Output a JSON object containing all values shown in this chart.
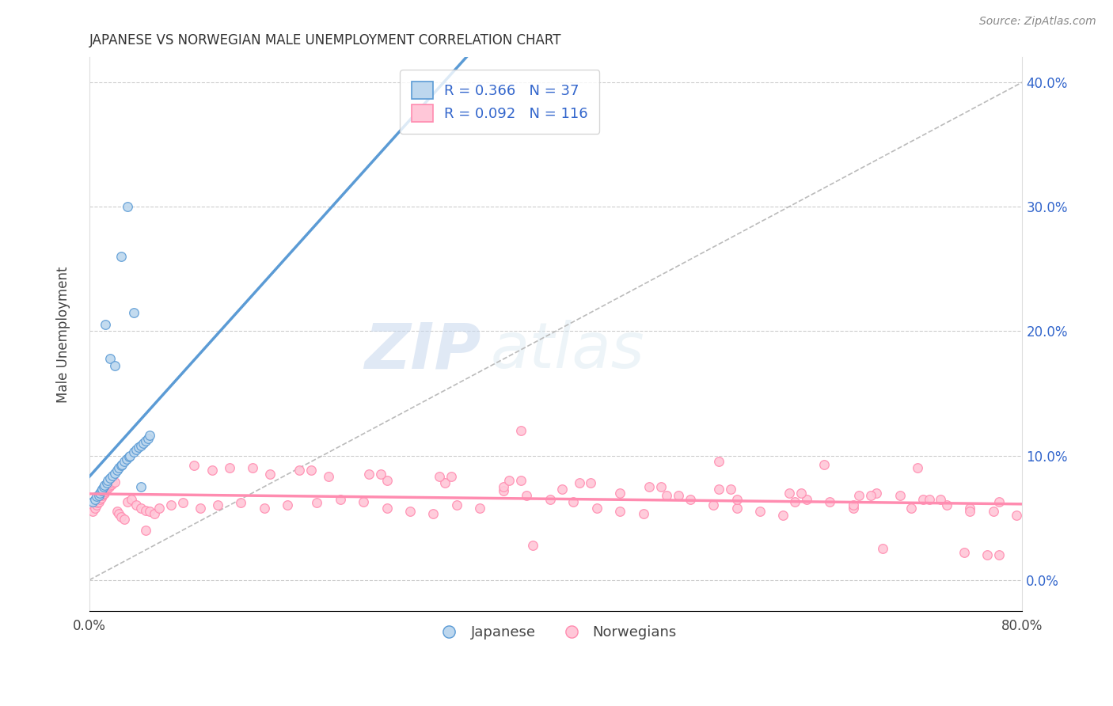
{
  "title": "JAPANESE VS NORWEGIAN MALE UNEMPLOYMENT CORRELATION CHART",
  "source": "Source: ZipAtlas.com",
  "ylabel": "Male Unemployment",
  "xlabel": "",
  "xlim": [
    0.0,
    0.8
  ],
  "ylim": [
    -0.025,
    0.42
  ],
  "xticks": [
    0.0,
    0.8
  ],
  "xticklabels": [
    "0.0%",
    "80.0%"
  ],
  "yticks_right": [
    0.0,
    0.1,
    0.2,
    0.3,
    0.4
  ],
  "yticklabels_right": [
    "0.0%",
    "10.0%",
    "20.0%",
    "30.0%",
    "40.0%"
  ],
  "blue_color": "#5b9bd5",
  "blue_fill": "#bdd7ee",
  "pink_color": "#ff8cb0",
  "pink_fill": "#ffc7d8",
  "blue_R": 0.366,
  "blue_N": 37,
  "pink_R": 0.092,
  "pink_N": 116,
  "watermark_zip": "ZIP",
  "watermark_atlas": "atlas",
  "legend_color": "#3366cc",
  "grid_color": "#cccccc",
  "diag_color": "#bbbbbb",
  "jp_x": [
    0.003,
    0.005,
    0.006,
    0.008,
    0.009,
    0.01,
    0.011,
    0.012,
    0.013,
    0.015,
    0.016,
    0.018,
    0.02,
    0.022,
    0.024,
    0.025,
    0.027,
    0.028,
    0.03,
    0.032,
    0.034,
    0.035,
    0.038,
    0.04,
    0.042,
    0.044,
    0.046,
    0.048,
    0.05,
    0.052,
    0.014,
    0.018,
    0.022,
    0.027,
    0.033,
    0.038,
    0.044
  ],
  "jp_y": [
    0.063,
    0.065,
    0.067,
    0.068,
    0.07,
    0.072,
    0.073,
    0.075,
    0.076,
    0.078,
    0.08,
    0.082,
    0.084,
    0.086,
    0.088,
    0.09,
    0.092,
    0.093,
    0.095,
    0.097,
    0.099,
    0.1,
    0.103,
    0.105,
    0.107,
    0.108,
    0.11,
    0.112,
    0.114,
    0.116,
    0.205,
    0.178,
    0.172,
    0.26,
    0.3,
    0.215,
    0.075
  ],
  "no_x": [
    0.003,
    0.005,
    0.006,
    0.007,
    0.008,
    0.009,
    0.01,
    0.011,
    0.012,
    0.013,
    0.014,
    0.015,
    0.016,
    0.017,
    0.018,
    0.019,
    0.02,
    0.022,
    0.024,
    0.025,
    0.027,
    0.03,
    0.033,
    0.036,
    0.04,
    0.044,
    0.048,
    0.052,
    0.056,
    0.06,
    0.07,
    0.08,
    0.095,
    0.11,
    0.13,
    0.15,
    0.17,
    0.195,
    0.215,
    0.235,
    0.255,
    0.275,
    0.295,
    0.315,
    0.335,
    0.355,
    0.375,
    0.395,
    0.415,
    0.435,
    0.455,
    0.475,
    0.495,
    0.515,
    0.535,
    0.555,
    0.575,
    0.595,
    0.615,
    0.635,
    0.655,
    0.675,
    0.695,
    0.715,
    0.735,
    0.755,
    0.775,
    0.795,
    0.105,
    0.155,
    0.205,
    0.255,
    0.305,
    0.355,
    0.405,
    0.455,
    0.505,
    0.555,
    0.605,
    0.655,
    0.705,
    0.755,
    0.12,
    0.18,
    0.24,
    0.3,
    0.36,
    0.42,
    0.48,
    0.54,
    0.6,
    0.66,
    0.72,
    0.78,
    0.09,
    0.14,
    0.19,
    0.25,
    0.31,
    0.37,
    0.43,
    0.49,
    0.55,
    0.61,
    0.67,
    0.73,
    0.37,
    0.54,
    0.63,
    0.71,
    0.77,
    0.048,
    0.38,
    0.68,
    0.75,
    0.78
  ],
  "no_y": [
    0.055,
    0.058,
    0.06,
    0.062,
    0.063,
    0.065,
    0.066,
    0.068,
    0.069,
    0.07,
    0.071,
    0.073,
    0.074,
    0.075,
    0.076,
    0.077,
    0.078,
    0.079,
    0.055,
    0.053,
    0.051,
    0.049,
    0.063,
    0.065,
    0.06,
    0.058,
    0.056,
    0.055,
    0.053,
    0.058,
    0.06,
    0.062,
    0.058,
    0.06,
    0.062,
    0.058,
    0.06,
    0.062,
    0.065,
    0.063,
    0.058,
    0.055,
    0.053,
    0.06,
    0.058,
    0.072,
    0.068,
    0.065,
    0.063,
    0.058,
    0.055,
    0.053,
    0.068,
    0.065,
    0.06,
    0.058,
    0.055,
    0.052,
    0.065,
    0.063,
    0.058,
    0.07,
    0.068,
    0.065,
    0.06,
    0.058,
    0.055,
    0.052,
    0.088,
    0.085,
    0.083,
    0.08,
    0.078,
    0.075,
    0.073,
    0.07,
    0.068,
    0.065,
    0.063,
    0.06,
    0.058,
    0.055,
    0.09,
    0.088,
    0.085,
    0.083,
    0.08,
    0.078,
    0.075,
    0.073,
    0.07,
    0.068,
    0.065,
    0.063,
    0.092,
    0.09,
    0.088,
    0.085,
    0.083,
    0.08,
    0.078,
    0.075,
    0.073,
    0.07,
    0.068,
    0.065,
    0.12,
    0.095,
    0.093,
    0.09,
    0.02,
    0.04,
    0.028,
    0.025,
    0.022,
    0.02
  ]
}
